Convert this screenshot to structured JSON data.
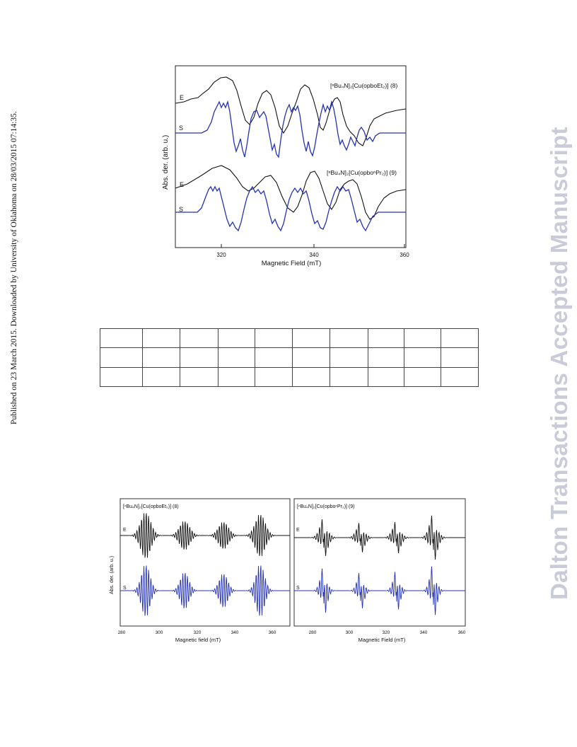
{
  "sidebar_left": "Published on 23 March 2015. Downloaded by University of Oklahoma on 28/03/2015 07:14:35.",
  "sidebar_right": "Dalton Transactions Accepted Manuscript",
  "figure_top": {
    "ylabel": "Abs. der. (arb. u.)",
    "xlabel": "Magnetic Field (mT)",
    "xticks": [
      "320",
      "340",
      "360"
    ],
    "trace_labels": [
      "E",
      "S",
      "E",
      "S"
    ],
    "compound_8": "[ⁿBu₄N]₂[Cu(opboEt₂)] (8)",
    "compound_9": "[ⁿBu₄N]₂[Cu(opboⁿPr₂)] (9)"
  },
  "table": {
    "rows": 3,
    "cols": 10
  },
  "figure_bottom": {
    "left_panel": {
      "title": "[ⁿBu₄N]₂[Cu(opboEt₂)] (8)",
      "ylabel": "Abs. der. (arb. u.)",
      "xlabel": "Magnetic field (mT)",
      "xticks": [
        "280",
        "300",
        "320",
        "340",
        "360"
      ],
      "trace_labels": [
        "E",
        "S"
      ]
    },
    "right_panel": {
      "title": "[ⁿBu₄N]₂[Cu(opboⁿPr₂)] (9)",
      "xlabel": "Magnetic Field (mT)",
      "xticks": [
        "280",
        "300",
        "320",
        "340",
        "360"
      ],
      "trace_labels": [
        "E",
        "S"
      ]
    }
  },
  "chart_data": [
    {
      "type": "line",
      "title": "",
      "xlabel": "Magnetic Field (mT)",
      "ylabel": "Abs. der. (arb. u.)",
      "xlim": [
        310,
        360
      ],
      "series": [
        {
          "name": "E",
          "x": [
            310,
            315,
            320,
            325,
            330,
            335,
            338,
            342,
            346,
            350,
            355,
            360
          ],
          "values": [
            0.5,
            0.62,
            0.9,
            0.55,
            0.8,
            0.38,
            0.88,
            0.42,
            0.8,
            0.2,
            0.35,
            0.45
          ]
        },
        {
          "name": "S",
          "x": [
            310,
            317,
            321,
            325,
            329,
            333,
            337,
            341,
            345,
            350,
            355,
            360
          ],
          "values": [
            0,
            0,
            0.65,
            -0.45,
            0.7,
            -0.5,
            0.7,
            -0.5,
            0.65,
            -0.4,
            0,
            0
          ]
        }
      ]
    },
    {
      "type": "line",
      "title": "",
      "xlabel": "Magnetic field (mT)",
      "ylabel": "Abs. der. (arb. u.)",
      "xlim": [
        280,
        370
      ],
      "series": [
        {
          "name": "E",
          "x": [
            280,
            291,
            312,
            333,
            354,
            370
          ],
          "values": [
            0,
            0.9,
            0.6,
            0.55,
            0.85,
            0
          ]
        },
        {
          "name": "S",
          "x": [
            280,
            291,
            312,
            333,
            354,
            370
          ],
          "values": [
            0,
            0.9,
            0.6,
            0.55,
            0.85,
            0
          ]
        }
      ]
    },
    {
      "type": "line",
      "title": "",
      "xlabel": "Magnetic Field (mT)",
      "xlim": [
        270,
        360
      ],
      "series": [
        {
          "name": "E",
          "x": [
            270,
            286,
            306,
            326,
            346,
            360
          ],
          "values": [
            0,
            0.8,
            0.7,
            0.75,
            0.95,
            0
          ]
        },
        {
          "name": "S",
          "x": [
            270,
            286,
            306,
            326,
            346,
            360
          ],
          "values": [
            0,
            0.8,
            0.7,
            0.75,
            0.95,
            0
          ]
        }
      ]
    }
  ]
}
